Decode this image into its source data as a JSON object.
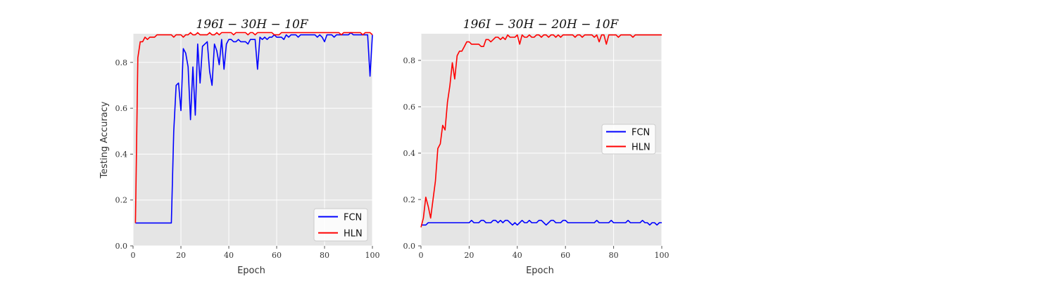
{
  "chart_data": [
    {
      "type": "line",
      "title": "196I − 30H − 10F",
      "xlabel": "Epoch",
      "ylabel": "Testing  Accuracy",
      "xlim": [
        0,
        100
      ],
      "ylim": [
        0,
        0.925
      ],
      "xticks": [
        0,
        20,
        40,
        60,
        80,
        100
      ],
      "yticks": [
        0.0,
        0.2,
        0.4,
        0.6,
        0.8
      ],
      "xtick_labels": [
        "0",
        "20",
        "40",
        "60",
        "80",
        "100"
      ],
      "ytick_labels": [
        "0.0",
        "0.2",
        "0.4",
        "0.6",
        "0.8"
      ],
      "grid": true,
      "legend_position": "lower-right",
      "series": [
        {
          "name": "FCN",
          "color": "#0000ff",
          "x": [
            1,
            2,
            3,
            4,
            5,
            6,
            7,
            8,
            9,
            10,
            11,
            12,
            13,
            14,
            15,
            16,
            17,
            18,
            19,
            20,
            21,
            22,
            23,
            24,
            25,
            26,
            27,
            28,
            29,
            30,
            31,
            32,
            33,
            34,
            35,
            36,
            37,
            38,
            39,
            40,
            41,
            42,
            43,
            44,
            45,
            46,
            47,
            48,
            49,
            50,
            51,
            52,
            53,
            54,
            55,
            56,
            57,
            58,
            59,
            60,
            61,
            62,
            63,
            64,
            65,
            66,
            67,
            68,
            69,
            70,
            71,
            72,
            73,
            74,
            75,
            76,
            77,
            78,
            79,
            80,
            81,
            82,
            83,
            84,
            85,
            86,
            87,
            88,
            89,
            90,
            91,
            92,
            93,
            94,
            95,
            96,
            97,
            98,
            99,
            100
          ],
          "y": [
            0.1,
            0.1,
            0.1,
            0.1,
            0.1,
            0.1,
            0.1,
            0.1,
            0.1,
            0.1,
            0.1,
            0.1,
            0.1,
            0.1,
            0.1,
            0.1,
            0.5,
            0.7,
            0.71,
            0.59,
            0.86,
            0.84,
            0.78,
            0.55,
            0.78,
            0.57,
            0.88,
            0.71,
            0.87,
            0.88,
            0.89,
            0.76,
            0.7,
            0.88,
            0.85,
            0.79,
            0.9,
            0.77,
            0.88,
            0.9,
            0.9,
            0.89,
            0.89,
            0.9,
            0.89,
            0.89,
            0.89,
            0.88,
            0.9,
            0.9,
            0.9,
            0.77,
            0.91,
            0.9,
            0.91,
            0.9,
            0.91,
            0.91,
            0.92,
            0.91,
            0.91,
            0.91,
            0.9,
            0.92,
            0.91,
            0.92,
            0.92,
            0.92,
            0.91,
            0.92,
            0.92,
            0.92,
            0.92,
            0.92,
            0.92,
            0.92,
            0.91,
            0.92,
            0.91,
            0.89,
            0.92,
            0.92,
            0.92,
            0.91,
            0.92,
            0.92,
            0.92,
            0.92,
            0.92,
            0.92,
            0.93,
            0.92,
            0.92,
            0.92,
            0.92,
            0.92,
            0.92,
            0.92,
            0.74,
            0.92
          ]
        },
        {
          "name": "HLN",
          "color": "#ff0000",
          "x": [
            1,
            2,
            3,
            4,
            5,
            6,
            7,
            8,
            9,
            10,
            11,
            12,
            13,
            14,
            15,
            16,
            17,
            18,
            19,
            20,
            21,
            22,
            23,
            24,
            25,
            26,
            27,
            28,
            29,
            30,
            31,
            32,
            33,
            34,
            35,
            36,
            37,
            38,
            39,
            40,
            41,
            42,
            43,
            44,
            45,
            46,
            47,
            48,
            49,
            50,
            51,
            52,
            53,
            54,
            55,
            56,
            57,
            58,
            59,
            60,
            61,
            62,
            63,
            64,
            65,
            66,
            67,
            68,
            69,
            70,
            71,
            72,
            73,
            74,
            75,
            76,
            77,
            78,
            79,
            80,
            81,
            82,
            83,
            84,
            85,
            86,
            87,
            88,
            89,
            90,
            91,
            92,
            93,
            94,
            95,
            96,
            97,
            98,
            99,
            100
          ],
          "y": [
            0.1,
            0.82,
            0.89,
            0.89,
            0.91,
            0.9,
            0.91,
            0.91,
            0.91,
            0.92,
            0.92,
            0.92,
            0.92,
            0.92,
            0.92,
            0.92,
            0.91,
            0.92,
            0.92,
            0.92,
            0.91,
            0.92,
            0.92,
            0.93,
            0.92,
            0.92,
            0.93,
            0.92,
            0.92,
            0.92,
            0.92,
            0.93,
            0.92,
            0.92,
            0.93,
            0.92,
            0.93,
            0.93,
            0.93,
            0.93,
            0.93,
            0.92,
            0.93,
            0.93,
            0.93,
            0.93,
            0.93,
            0.92,
            0.93,
            0.93,
            0.92,
            0.93,
            0.93,
            0.93,
            0.93,
            0.93,
            0.93,
            0.93,
            0.92,
            0.92,
            0.92,
            0.93,
            0.93,
            0.93,
            0.93,
            0.93,
            0.93,
            0.93,
            0.93,
            0.93,
            0.93,
            0.93,
            0.93,
            0.93,
            0.93,
            0.93,
            0.93,
            0.93,
            0.93,
            0.93,
            0.93,
            0.93,
            0.93,
            0.93,
            0.93,
            0.93,
            0.92,
            0.93,
            0.93,
            0.93,
            0.93,
            0.93,
            0.93,
            0.93,
            0.93,
            0.92,
            0.93,
            0.93,
            0.93,
            0.92
          ]
        }
      ]
    },
    {
      "type": "line",
      "title": "196I − 30H − 20H − 10F",
      "xlabel": "Epoch",
      "ylabel": "",
      "xlim": [
        0,
        100
      ],
      "ylim": [
        0,
        0.915
      ],
      "xticks": [
        0,
        20,
        40,
        60,
        80,
        100
      ],
      "yticks": [
        0.0,
        0.2,
        0.4,
        0.6,
        0.8
      ],
      "xtick_labels": [
        "0",
        "20",
        "40",
        "60",
        "80",
        "100"
      ],
      "ytick_labels": [
        "0.0",
        "0.2",
        "0.4",
        "0.6",
        "0.8"
      ],
      "grid": true,
      "legend_position": "center-right",
      "series": [
        {
          "name": "FCN",
          "color": "#0000ff",
          "x": [
            0,
            1,
            2,
            3,
            4,
            5,
            6,
            7,
            8,
            9,
            10,
            11,
            12,
            13,
            14,
            15,
            16,
            17,
            18,
            19,
            20,
            21,
            22,
            23,
            24,
            25,
            26,
            27,
            28,
            29,
            30,
            31,
            32,
            33,
            34,
            35,
            36,
            37,
            38,
            39,
            40,
            41,
            42,
            43,
            44,
            45,
            46,
            47,
            48,
            49,
            50,
            51,
            52,
            53,
            54,
            55,
            56,
            57,
            58,
            59,
            60,
            61,
            62,
            63,
            64,
            65,
            66,
            67,
            68,
            69,
            70,
            71,
            72,
            73,
            74,
            75,
            76,
            77,
            78,
            79,
            80,
            81,
            82,
            83,
            84,
            85,
            86,
            87,
            88,
            89,
            90,
            91,
            92,
            93,
            94,
            95,
            96,
            97,
            98,
            99,
            100
          ],
          "y": [
            0.09,
            0.09,
            0.09,
            0.1,
            0.1,
            0.1,
            0.1,
            0.1,
            0.1,
            0.1,
            0.1,
            0.1,
            0.1,
            0.1,
            0.1,
            0.1,
            0.1,
            0.1,
            0.1,
            0.1,
            0.1,
            0.11,
            0.1,
            0.1,
            0.1,
            0.11,
            0.11,
            0.1,
            0.1,
            0.1,
            0.11,
            0.11,
            0.1,
            0.11,
            0.1,
            0.11,
            0.11,
            0.1,
            0.09,
            0.1,
            0.09,
            0.1,
            0.11,
            0.1,
            0.1,
            0.11,
            0.1,
            0.1,
            0.1,
            0.11,
            0.11,
            0.1,
            0.09,
            0.1,
            0.11,
            0.11,
            0.1,
            0.1,
            0.1,
            0.11,
            0.11,
            0.1,
            0.1,
            0.1,
            0.1,
            0.1,
            0.1,
            0.1,
            0.1,
            0.1,
            0.1,
            0.1,
            0.1,
            0.11,
            0.1,
            0.1,
            0.1,
            0.1,
            0.1,
            0.11,
            0.1,
            0.1,
            0.1,
            0.1,
            0.1,
            0.1,
            0.11,
            0.1,
            0.1,
            0.1,
            0.1,
            0.1,
            0.11,
            0.1,
            0.1,
            0.09,
            0.1,
            0.1,
            0.09,
            0.1,
            0.1
          ]
        },
        {
          "name": "HLN",
          "color": "#ff0000",
          "x": [
            0,
            1,
            2,
            3,
            4,
            5,
            6,
            7,
            8,
            9,
            10,
            11,
            12,
            13,
            14,
            15,
            16,
            17,
            18,
            19,
            20,
            21,
            22,
            23,
            24,
            25,
            26,
            27,
            28,
            29,
            30,
            31,
            32,
            33,
            34,
            35,
            36,
            37,
            38,
            39,
            40,
            41,
            42,
            43,
            44,
            45,
            46,
            47,
            48,
            49,
            50,
            51,
            52,
            53,
            54,
            55,
            56,
            57,
            58,
            59,
            60,
            61,
            62,
            63,
            64,
            65,
            66,
            67,
            68,
            69,
            70,
            71,
            72,
            73,
            74,
            75,
            76,
            77,
            78,
            79,
            80,
            81,
            82,
            83,
            84,
            85,
            86,
            87,
            88,
            89,
            90,
            91,
            92,
            93,
            94,
            95,
            96,
            97,
            98,
            99,
            100
          ],
          "y": [
            0.08,
            0.12,
            0.21,
            0.17,
            0.12,
            0.2,
            0.28,
            0.42,
            0.44,
            0.52,
            0.5,
            0.62,
            0.69,
            0.79,
            0.72,
            0.82,
            0.84,
            0.84,
            0.86,
            0.88,
            0.88,
            0.87,
            0.87,
            0.87,
            0.87,
            0.86,
            0.86,
            0.89,
            0.89,
            0.88,
            0.89,
            0.9,
            0.9,
            0.89,
            0.9,
            0.89,
            0.91,
            0.9,
            0.9,
            0.9,
            0.91,
            0.87,
            0.91,
            0.9,
            0.9,
            0.91,
            0.9,
            0.9,
            0.91,
            0.91,
            0.9,
            0.91,
            0.91,
            0.9,
            0.91,
            0.91,
            0.9,
            0.91,
            0.9,
            0.91,
            0.91,
            0.91,
            0.91,
            0.91,
            0.9,
            0.91,
            0.91,
            0.9,
            0.91,
            0.91,
            0.91,
            0.91,
            0.9,
            0.91,
            0.88,
            0.91,
            0.91,
            0.87,
            0.91,
            0.91,
            0.91,
            0.91,
            0.9,
            0.91,
            0.91,
            0.91,
            0.91,
            0.91,
            0.9,
            0.91,
            0.91,
            0.91,
            0.91,
            0.91,
            0.91,
            0.91,
            0.91,
            0.91,
            0.91,
            0.91,
            0.91
          ]
        }
      ]
    }
  ]
}
